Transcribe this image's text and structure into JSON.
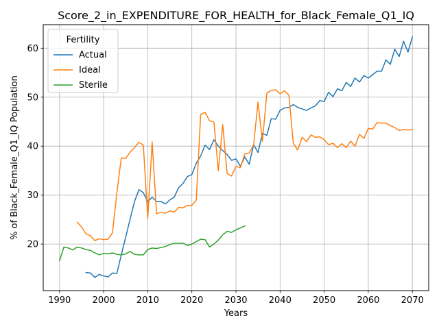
{
  "chart_data": {
    "type": "line",
    "title": "Score_2_in_EXPENDITURE_FOR_HEALTH_for_Black_Female_Q1_IQ",
    "xlabel": "Years",
    "ylabel": "% of Black_Female_Q1_IQ Population",
    "xlim": [
      1986.3,
      2073.7
    ],
    "ylim": [
      10.5,
      64.8
    ],
    "xticks": [
      1990,
      2000,
      2010,
      2020,
      2030,
      2040,
      2050,
      2060,
      2070
    ],
    "yticks": [
      20,
      30,
      40,
      50,
      60
    ],
    "grid": true,
    "legend": {
      "title": "Fertility",
      "position": "upper-left"
    },
    "series": [
      {
        "name": "Actual",
        "color": "#1f77b4",
        "x": [
          1996,
          1997,
          1998,
          1999,
          2000,
          2001,
          2002,
          2003,
          2004,
          2005,
          2006,
          2007,
          2008,
          2009,
          2010,
          2011,
          2012,
          2013,
          2014,
          2015,
          2016,
          2017,
          2018,
          2019,
          2020,
          2021,
          2022,
          2023,
          2024,
          2025,
          2026,
          2027,
          2028,
          2029,
          2030,
          2031,
          2032,
          2033,
          2034,
          2035,
          2036,
          2037,
          2038,
          2039,
          2040,
          2041,
          2042,
          2043,
          2044,
          2045,
          2046,
          2047,
          2048,
          2049,
          2050,
          2051,
          2052,
          2053,
          2054,
          2055,
          2056,
          2057,
          2058,
          2059,
          2060,
          2061,
          2062,
          2063,
          2064,
          2065,
          2066,
          2067,
          2068,
          2069,
          2070
        ],
        "y": [
          14.2,
          14.1,
          13.2,
          13.8,
          13.5,
          13.3,
          14.1,
          14.0,
          17.8,
          21.4,
          25.1,
          28.7,
          31.1,
          30.5,
          28.6,
          29.6,
          28.7,
          28.7,
          28.2,
          29.0,
          29.6,
          31.5,
          32.4,
          33.8,
          34.2,
          36.5,
          38.0,
          40.2,
          39.3,
          41.3,
          40.0,
          39.1,
          38.3,
          37.1,
          37.4,
          35.9,
          37.8,
          36.3,
          40.3,
          38.7,
          42.6,
          42.2,
          45.6,
          45.5,
          47.3,
          47.8,
          47.9,
          48.5,
          47.9,
          47.6,
          47.3,
          47.8,
          48.2,
          49.3,
          49.1,
          51.0,
          50.1,
          51.7,
          51.3,
          53.0,
          52.2,
          53.9,
          53.1,
          54.4,
          53.9,
          54.6,
          55.3,
          55.3,
          57.6,
          56.7,
          59.8,
          58.3,
          61.4,
          59.2,
          62.3
        ]
      },
      {
        "name": "Ideal",
        "color": "#ff7f0e",
        "x": [
          1994,
          1995,
          1996,
          1997,
          1998,
          1999,
          2000,
          2001,
          2002,
          2003,
          2004,
          2005,
          2006,
          2007,
          2008,
          2009,
          2010,
          2011,
          2012,
          2013,
          2014,
          2015,
          2016,
          2017,
          2018,
          2019,
          2020,
          2021,
          2022,
          2023,
          2024,
          2025,
          2026,
          2027,
          2028,
          2029,
          2030,
          2031,
          2032,
          2033,
          2034,
          2035,
          2036,
          2037,
          2038,
          2039,
          2040,
          2041,
          2042,
          2043,
          2044,
          2045,
          2046,
          2047,
          2048,
          2049,
          2050,
          2051,
          2052,
          2053,
          2054,
          2055,
          2056,
          2057,
          2058,
          2059,
          2060,
          2061,
          2062,
          2063,
          2064,
          2065,
          2066,
          2067,
          2068,
          2069,
          2070
        ],
        "y": [
          24.5,
          23.5,
          22.1,
          21.7,
          20.7,
          21.1,
          20.9,
          21.0,
          22.3,
          30.5,
          37.6,
          37.5,
          38.8,
          39.7,
          40.8,
          40.2,
          25.2,
          40.9,
          26.2,
          26.5,
          26.3,
          26.8,
          26.5,
          27.5,
          27.4,
          27.9,
          27.9,
          29.0,
          46.5,
          46.9,
          45.2,
          44.9,
          35.0,
          44.4,
          34.4,
          33.9,
          35.9,
          35.6,
          38.4,
          38.6,
          40.2,
          49.0,
          41.0,
          50.8,
          51.4,
          51.5,
          50.7,
          51.3,
          50.4,
          40.6,
          39.2,
          41.8,
          40.9,
          42.3,
          41.8,
          41.9,
          41.3,
          40.3,
          40.6,
          39.7,
          40.5,
          39.7,
          41.0,
          40.0,
          42.4,
          41.6,
          43.6,
          43.5,
          44.8,
          44.7,
          44.7,
          44.2,
          43.8,
          43.2,
          43.4,
          43.3,
          43.4
        ]
      },
      {
        "name": "Sterile",
        "color": "#2ca02c",
        "x": [
          1990,
          1991,
          1992,
          1993,
          1994,
          1995,
          1996,
          1997,
          1998,
          1999,
          2000,
          2001,
          2002,
          2003,
          2004,
          2005,
          2006,
          2007,
          2008,
          2009,
          2010,
          2011,
          2012,
          2013,
          2014,
          2015,
          2016,
          2017,
          2018,
          2019,
          2020,
          2021,
          2022,
          2023,
          2024,
          2025,
          2026,
          2027,
          2028,
          2029,
          2030,
          2031,
          2032
        ],
        "y": [
          16.6,
          19.4,
          19.2,
          18.8,
          19.4,
          19.2,
          18.9,
          18.7,
          18.2,
          17.8,
          18.1,
          18.0,
          18.2,
          17.9,
          17.8,
          18.0,
          18.5,
          17.9,
          17.8,
          17.8,
          18.9,
          19.2,
          19.1,
          19.3,
          19.5,
          19.9,
          20.2,
          20.2,
          20.2,
          19.7,
          20.0,
          20.5,
          21.0,
          20.9,
          19.4,
          20.0,
          20.8,
          21.9,
          22.6,
          22.4,
          22.9,
          23.3,
          23.7
        ]
      }
    ]
  }
}
